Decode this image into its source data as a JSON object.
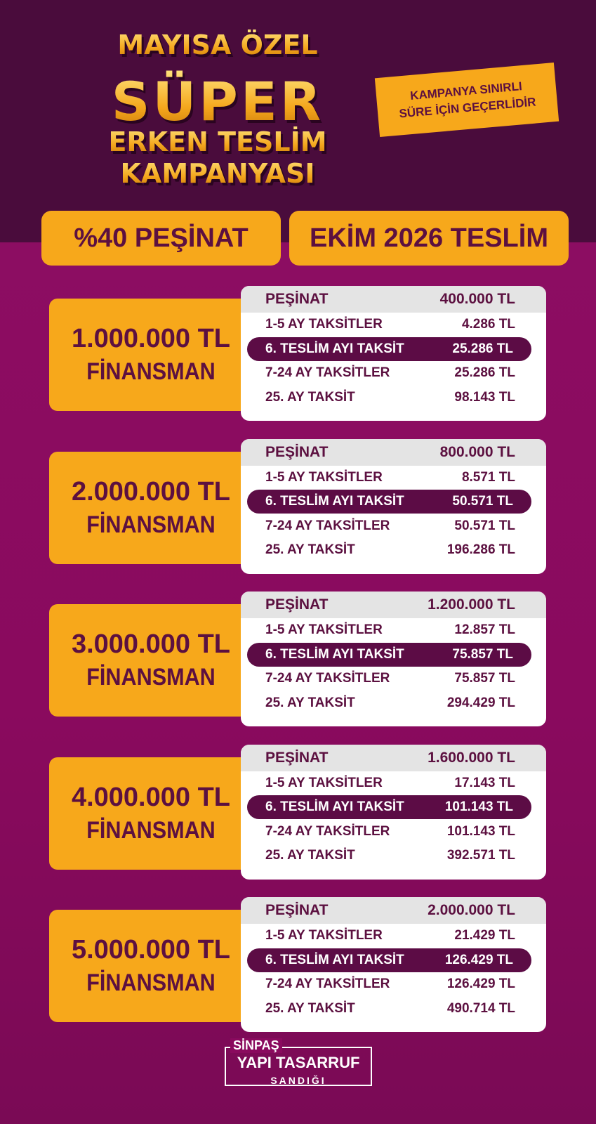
{
  "header": {
    "title": [
      "MAYISA ÖZEL",
      "SÜPER",
      "ERKEN TESLİM",
      "KAMPANYASI"
    ],
    "badge": [
      "KAMPANYA SINIRLI",
      "SÜRE İÇİN GEÇERLİDİR"
    ]
  },
  "pills": [
    "%40 PEŞİNAT",
    "EKİM 2026 TESLİM"
  ],
  "plans": [
    {
      "amount": "1.000.000 TL",
      "label": "FİNANSMAN",
      "rows": [
        [
          "PEŞİNAT",
          "400.000 TL"
        ],
        [
          "1-5 AY TAKSİTLER",
          "4.286 TL"
        ],
        [
          "6. TESLİM AYI TAKSİT",
          "25.286 TL"
        ],
        [
          "7-24 AY TAKSİTLER",
          "25.286 TL"
        ],
        [
          "25. AY TAKSİT",
          "98.143 TL"
        ]
      ]
    },
    {
      "amount": "2.000.000 TL",
      "label": "FİNANSMAN",
      "rows": [
        [
          "PEŞİNAT",
          "800.000 TL"
        ],
        [
          "1-5 AY TAKSİTLER",
          "8.571 TL"
        ],
        [
          "6. TESLİM AYI TAKSİT",
          "50.571 TL"
        ],
        [
          "7-24 AY TAKSİTLER",
          "50.571 TL"
        ],
        [
          "25. AY TAKSİT",
          "196.286 TL"
        ]
      ]
    },
    {
      "amount": "3.000.000 TL",
      "label": "FİNANSMAN",
      "rows": [
        [
          "PEŞİNAT",
          "1.200.000 TL"
        ],
        [
          "1-5 AY TAKSİTLER",
          "12.857 TL"
        ],
        [
          "6. TESLİM AYI TAKSİT",
          "75.857 TL"
        ],
        [
          "7-24 AY TAKSİTLER",
          "75.857 TL"
        ],
        [
          "25. AY TAKSİT",
          "294.429 TL"
        ]
      ]
    },
    {
      "amount": "4.000.000 TL",
      "label": "FİNANSMAN",
      "rows": [
        [
          "PEŞİNAT",
          "1.600.000 TL"
        ],
        [
          "1-5 AY TAKSİTLER",
          "17.143 TL"
        ],
        [
          "6. TESLİM AYI TAKSİT",
          "101.143 TL"
        ],
        [
          "7-24 AY TAKSİTLER",
          "101.143 TL"
        ],
        [
          "25. AY TAKSİT",
          "392.571 TL"
        ]
      ]
    },
    {
      "amount": "5.000.000 TL",
      "label": "FİNANSMAN",
      "rows": [
        [
          "PEŞİNAT",
          "2.000.000 TL"
        ],
        [
          "1-5 AY TAKSİTLER",
          "21.429 TL"
        ],
        [
          "6. TESLİM AYI TAKSİT",
          "126.429 TL"
        ],
        [
          "7-24 AY TAKSİTLER",
          "126.429 TL"
        ],
        [
          "25. AY TAKSİT",
          "490.714 TL"
        ]
      ]
    }
  ],
  "logo": [
    "SİNPAŞ",
    "YAPI TASARRUF",
    "SANDIĞI"
  ]
}
